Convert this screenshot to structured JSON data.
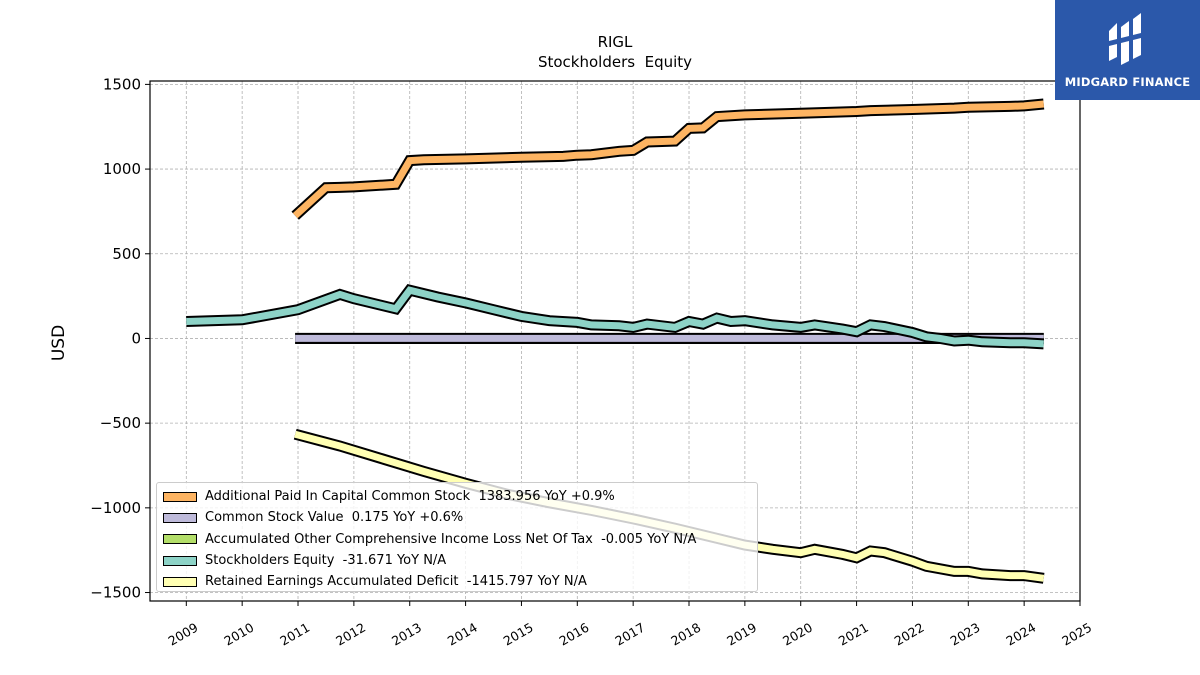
{
  "logo": {
    "text": "MIDGARD FINANCE",
    "color": "#2b58aa"
  },
  "chart_data": {
    "type": "line",
    "title": "RIGL",
    "subtitle": "Stockholders  Equity",
    "ylabel": "USD",
    "xlabel": "",
    "ylim": [
      -1550,
      1520
    ],
    "xlim": [
      2008.35,
      2025.0
    ],
    "yticks": [
      -1500,
      -1000,
      -500,
      0,
      500,
      1000,
      1500
    ],
    "ytick_labels": [
      "−1500",
      "−1000",
      "−500",
      "0",
      "500",
      "1000",
      "1500"
    ],
    "xticks": [
      2009,
      2010,
      2011,
      2012,
      2013,
      2014,
      2015,
      2016,
      2017,
      2018,
      2019,
      2020,
      2021,
      2022,
      2023,
      2024,
      2025
    ],
    "xtick_labels": [
      "2009",
      "2010",
      "2011",
      "2012",
      "2013",
      "2014",
      "2015",
      "2016",
      "2017",
      "2018",
      "2019",
      "2020",
      "2021",
      "2022",
      "2023",
      "2024",
      "2025"
    ],
    "grid": true,
    "legend_position": "lower-left",
    "series": [
      {
        "name": "Additional Paid In Capital Common Stock",
        "legend_label": "Additional Paid In Capital Common Stock  1383.956 YoY +0.9%",
        "color": "#fdb462",
        "x": [
          2010.95,
          2011.5,
          2011.75,
          2012.0,
          2012.75,
          2013.0,
          2013.25,
          2014.0,
          2015.0,
          2015.75,
          2016.0,
          2016.25,
          2016.75,
          2017.0,
          2017.25,
          2017.75,
          2018.0,
          2018.25,
          2018.5,
          2019.0,
          2020.0,
          2021.0,
          2021.25,
          2022.0,
          2022.75,
          2023.0,
          2023.75,
          2024.0,
          2024.35
        ],
        "y": [
          725,
          890,
          892,
          895,
          910,
          1050,
          1055,
          1060,
          1070,
          1075,
          1082,
          1085,
          1105,
          1110,
          1160,
          1165,
          1240,
          1243,
          1310,
          1320,
          1330,
          1340,
          1345,
          1352,
          1360,
          1365,
          1370,
          1373,
          1384
        ]
      },
      {
        "name": "Common Stock Value",
        "legend_label": "Common Stock Value  0.175 YoY +0.6%",
        "color": "#bebada",
        "x": [
          2010.95,
          2024.35
        ],
        "y": [
          0.1,
          0.175
        ]
      },
      {
        "name": "Accumulated Other Comprehensive Income Loss Net Of Tax",
        "legend_label": "Accumulated Other Comprehensive Income Loss Net Of Tax  -0.005 YoY N/A",
        "color": "#b3de69",
        "x": [
          2010.95,
          2024.35
        ],
        "y": [
          0,
          -0.005
        ]
      },
      {
        "name": "Stockholders Equity",
        "legend_label": "Stockholders Equity  -31.671 YoY N/A",
        "color": "#8dd3c7",
        "x": [
          2009.0,
          2010.0,
          2011.0,
          2011.75,
          2012.0,
          2012.75,
          2013.0,
          2013.5,
          2014.0,
          2014.5,
          2015.0,
          2015.5,
          2016.0,
          2016.25,
          2016.75,
          2017.0,
          2017.25,
          2017.75,
          2018.0,
          2018.25,
          2018.5,
          2018.75,
          2019.0,
          2019.5,
          2020.0,
          2020.25,
          2020.75,
          2021.0,
          2021.25,
          2021.5,
          2022.0,
          2022.25,
          2022.5,
          2022.75,
          2023.0,
          2023.25,
          2023.75,
          2024.0,
          2024.35
        ],
        "y": [
          100,
          110,
          170,
          260,
          235,
          175,
          285,
          245,
          210,
          170,
          130,
          105,
          95,
          80,
          75,
          65,
          85,
          65,
          100,
          85,
          120,
          100,
          105,
          80,
          65,
          80,
          55,
          40,
          80,
          70,
          35,
          10,
          0,
          -15,
          -10,
          -20,
          -25,
          -25,
          -32
        ]
      },
      {
        "name": "Retained Earnings Accumulated Deficit",
        "legend_label": "Retained Earnings Accumulated Deficit  -1415.797 YoY N/A",
        "color": "#ffffb3",
        "x": [
          2010.95,
          2011.75,
          2012.5,
          2013.25,
          2014.0,
          2014.75,
          2015.5,
          2016.25,
          2017.0,
          2017.75,
          2018.5,
          2019.0,
          2019.5,
          2020.0,
          2020.25,
          2020.75,
          2021.0,
          2021.25,
          2021.5,
          2022.0,
          2022.25,
          2022.75,
          2023.0,
          2023.25,
          2023.75,
          2024.0,
          2024.35
        ],
        "y": [
          -565,
          -635,
          -710,
          -785,
          -855,
          -920,
          -970,
          -1015,
          -1065,
          -1120,
          -1180,
          -1220,
          -1245,
          -1265,
          -1245,
          -1275,
          -1295,
          -1255,
          -1265,
          -1315,
          -1345,
          -1375,
          -1375,
          -1390,
          -1400,
          -1400,
          -1416
        ]
      }
    ]
  }
}
